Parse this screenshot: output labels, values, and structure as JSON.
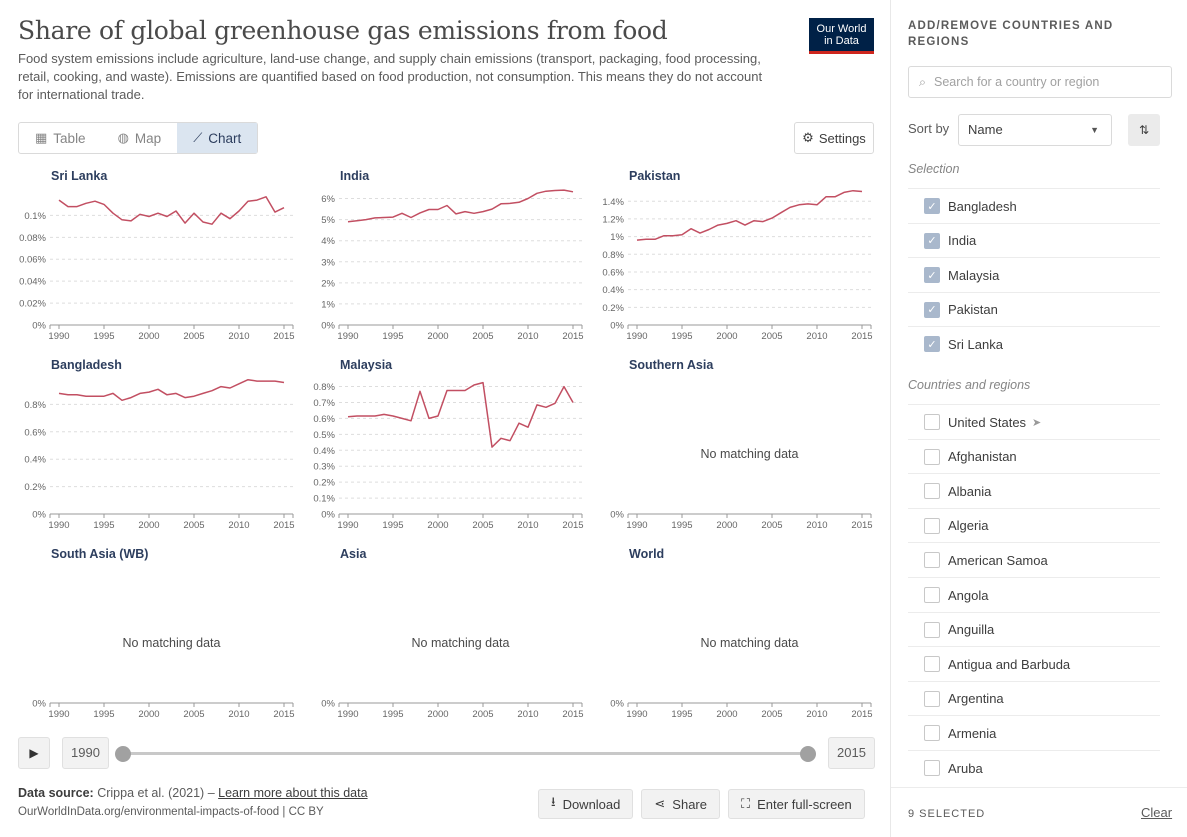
{
  "header": {
    "title": "Share of global greenhouse gas emissions from food",
    "subtitle": "Food system emissions include agriculture, land-use change, and supply chain emissions (transport, packaging, food processing, retail, cooking, and waste). Emissions are quantified based on food production, not consumption. This means they do not account for international trade.",
    "logo_line1": "Our World",
    "logo_line2": "in Data"
  },
  "tabs": [
    {
      "label": "Table",
      "icon": "table-icon"
    },
    {
      "label": "Map",
      "icon": "globe-icon"
    },
    {
      "label": "Chart",
      "icon": "line-chart-icon",
      "active": true
    }
  ],
  "settings_label": "Settings",
  "timeline": {
    "start": "1990",
    "end": "2015",
    "start_value": 1990,
    "end_value": 2015,
    "min": 1990,
    "max": 2015
  },
  "footer": {
    "source_label": "Data source:",
    "source_text": "Crippa et al. (2021) –",
    "source_link": "Learn more about this data",
    "url": "OurWorldInData.org/environmental-impacts-of-food | CC BY",
    "download": "Download",
    "share": "Share",
    "fullscreen": "Enter full-screen"
  },
  "sidebar": {
    "heading": "ADD/REMOVE COUNTRIES AND REGIONS",
    "search_placeholder": "Search for a country or region",
    "sort_label": "Sort by",
    "sort_value": "Name",
    "selection_title": "Selection",
    "selected": [
      "Bangladesh",
      "India",
      "Malaysia",
      "Pakistan",
      "Sri Lanka"
    ],
    "others_title": "Countries and regions",
    "others": [
      "United States",
      "Afghanistan",
      "Albania",
      "Algeria",
      "American Samoa",
      "Angola",
      "Anguilla",
      "Antigua and Barbuda",
      "Argentina",
      "Armenia",
      "Aruba"
    ],
    "selected_count": "9 SELECTED",
    "clear": "Clear"
  },
  "no_data_text": "No matching data",
  "colors": {
    "line": "#c24f62",
    "brand": "#002147",
    "accent": "#ce261e"
  },
  "chart_data": [
    {
      "type": "line",
      "title": "Sri Lanka",
      "yticks": [
        "0%",
        "0.02%",
        "0.04%",
        "0.06%",
        "0.08%",
        "0.1%"
      ],
      "ylim": [
        0,
        0.125
      ],
      "x": [
        1990,
        1991,
        1992,
        1993,
        1994,
        1995,
        1996,
        1997,
        1998,
        1999,
        2000,
        2001,
        2002,
        2003,
        2004,
        2005,
        2006,
        2007,
        2008,
        2009,
        2010,
        2011,
        2012,
        2013,
        2014,
        2015
      ],
      "values": [
        0.114,
        0.108,
        0.108,
        0.111,
        0.113,
        0.11,
        0.102,
        0.096,
        0.095,
        0.101,
        0.099,
        0.102,
        0.099,
        0.104,
        0.093,
        0.102,
        0.094,
        0.092,
        0.102,
        0.097,
        0.104,
        0.113,
        0.114,
        0.117,
        0.103,
        0.107
      ]
    },
    {
      "type": "line",
      "title": "India",
      "yticks": [
        "0%",
        "1%",
        "2%",
        "3%",
        "4%",
        "5%",
        "6%"
      ],
      "ylim": [
        0,
        6.5
      ],
      "x": [
        1990,
        1991,
        1992,
        1993,
        1994,
        1995,
        1996,
        1997,
        1998,
        1999,
        2000,
        2001,
        2002,
        2003,
        2004,
        2005,
        2006,
        2007,
        2008,
        2009,
        2010,
        2011,
        2012,
        2013,
        2014,
        2015
      ],
      "values": [
        4.9,
        4.95,
        5.0,
        5.08,
        5.1,
        5.12,
        5.3,
        5.1,
        5.32,
        5.48,
        5.48,
        5.67,
        5.27,
        5.38,
        5.3,
        5.38,
        5.5,
        5.75,
        5.77,
        5.82,
        6.0,
        6.25,
        6.35,
        6.38,
        6.4,
        6.32
      ]
    },
    {
      "type": "line",
      "title": "Pakistan",
      "yticks": [
        "0%",
        "0.2%",
        "0.4%",
        "0.6%",
        "0.8%",
        "1%",
        "1.2%",
        "1.4%"
      ],
      "ylim": [
        0,
        1.55
      ],
      "x": [
        1990,
        1991,
        1992,
        1993,
        1994,
        1995,
        1996,
        1997,
        1998,
        1999,
        2000,
        2001,
        2002,
        2003,
        2004,
        2005,
        2006,
        2007,
        2008,
        2009,
        2010,
        2011,
        2012,
        2013,
        2014,
        2015
      ],
      "values": [
        0.96,
        0.97,
        0.97,
        1.01,
        1.01,
        1.02,
        1.09,
        1.04,
        1.08,
        1.13,
        1.15,
        1.18,
        1.13,
        1.18,
        1.17,
        1.21,
        1.27,
        1.33,
        1.36,
        1.37,
        1.36,
        1.45,
        1.45,
        1.5,
        1.52,
        1.51
      ]
    },
    {
      "type": "line",
      "title": "Bangladesh",
      "yticks": [
        "0%",
        "0.2%",
        "0.4%",
        "0.6%",
        "0.8%"
      ],
      "ylim": [
        0,
        1.0
      ],
      "x": [
        1990,
        1991,
        1992,
        1993,
        1994,
        1995,
        1996,
        1997,
        1998,
        1999,
        2000,
        2001,
        2002,
        2003,
        2004,
        2005,
        2006,
        2007,
        2008,
        2009,
        2010,
        2011,
        2012,
        2013,
        2014,
        2015
      ],
      "values": [
        0.88,
        0.87,
        0.87,
        0.86,
        0.86,
        0.86,
        0.88,
        0.83,
        0.85,
        0.88,
        0.89,
        0.91,
        0.87,
        0.88,
        0.85,
        0.86,
        0.88,
        0.9,
        0.93,
        0.92,
        0.95,
        0.98,
        0.97,
        0.97,
        0.97,
        0.96
      ]
    },
    {
      "type": "line",
      "title": "Malaysia",
      "yticks": [
        "0%",
        "0.1%",
        "0.2%",
        "0.3%",
        "0.4%",
        "0.5%",
        "0.6%",
        "0.7%",
        "0.8%"
      ],
      "ylim": [
        0,
        0.86
      ],
      "x": [
        1990,
        1991,
        1992,
        1993,
        1994,
        1995,
        1996,
        1997,
        1998,
        1999,
        2000,
        2001,
        2002,
        2003,
        2004,
        2005,
        2006,
        2007,
        2008,
        2009,
        2010,
        2011,
        2012,
        2013,
        2014,
        2015
      ],
      "values": [
        0.61,
        0.615,
        0.615,
        0.615,
        0.625,
        0.615,
        0.6,
        0.585,
        0.77,
        0.6,
        0.615,
        0.775,
        0.775,
        0.775,
        0.81,
        0.825,
        0.42,
        0.475,
        0.46,
        0.57,
        0.545,
        0.685,
        0.67,
        0.695,
        0.8,
        0.7
      ]
    },
    {
      "type": "line",
      "title": "Southern Asia",
      "yticks": [
        "0%"
      ],
      "ylim": [
        0,
        1
      ],
      "x": [],
      "values": [],
      "no_data": true
    },
    {
      "type": "line",
      "title": "South Asia (WB)",
      "yticks": [
        "0%"
      ],
      "ylim": [
        0,
        1
      ],
      "x": [],
      "values": [],
      "no_data": true
    },
    {
      "type": "line",
      "title": "Asia",
      "yticks": [
        "0%"
      ],
      "ylim": [
        0,
        1
      ],
      "x": [],
      "values": [],
      "no_data": true
    },
    {
      "type": "line",
      "title": "World",
      "yticks": [
        "0%"
      ],
      "ylim": [
        0,
        1
      ],
      "x": [],
      "values": [],
      "no_data": true
    }
  ],
  "xticks": [
    "1990",
    "1995",
    "2000",
    "2005",
    "2010",
    "2015"
  ]
}
